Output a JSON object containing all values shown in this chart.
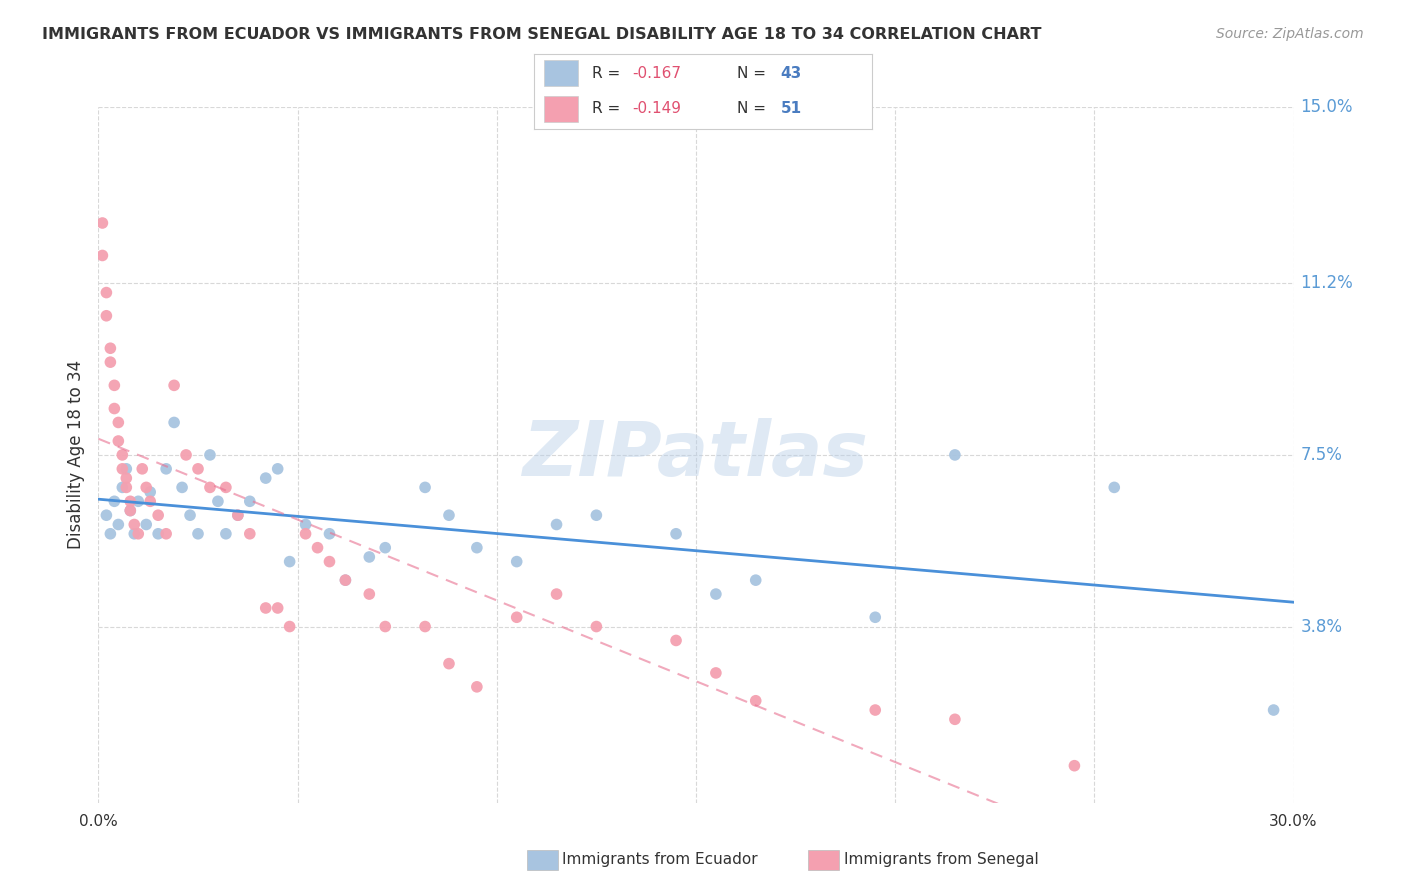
{
  "title": "IMMIGRANTS FROM ECUADOR VS IMMIGRANTS FROM SENEGAL DISABILITY AGE 18 TO 34 CORRELATION CHART",
  "source": "Source: ZipAtlas.com",
  "ylabel": "Disability Age 18 to 34",
  "xlim": [
    0.0,
    0.3
  ],
  "ylim": [
    0.0,
    0.15
  ],
  "yticks": [
    0.038,
    0.075,
    0.112,
    0.15
  ],
  "ytick_labels": [
    "3.8%",
    "7.5%",
    "11.2%",
    "15.0%"
  ],
  "xticks": [
    0.0,
    0.05,
    0.1,
    0.15,
    0.2,
    0.25,
    0.3
  ],
  "xtick_labels": [
    "0.0%",
    "",
    "",
    "",
    "",
    "",
    "30.0%"
  ],
  "ecuador_color": "#a8c4e0",
  "senegal_color": "#f4a0b0",
  "trend_ecuador_color": "#4a90d9",
  "trend_senegal_color": "#e87090",
  "ecuador_x": [
    0.002,
    0.003,
    0.004,
    0.005,
    0.006,
    0.007,
    0.008,
    0.009,
    0.01,
    0.012,
    0.013,
    0.015,
    0.017,
    0.019,
    0.021,
    0.023,
    0.025,
    0.028,
    0.03,
    0.032,
    0.035,
    0.038,
    0.042,
    0.045,
    0.048,
    0.052,
    0.058,
    0.062,
    0.068,
    0.072,
    0.082,
    0.088,
    0.095,
    0.105,
    0.115,
    0.125,
    0.145,
    0.155,
    0.165,
    0.195,
    0.215,
    0.255,
    0.295
  ],
  "ecuador_y": [
    0.062,
    0.058,
    0.065,
    0.06,
    0.068,
    0.072,
    0.063,
    0.058,
    0.065,
    0.06,
    0.067,
    0.058,
    0.072,
    0.082,
    0.068,
    0.062,
    0.058,
    0.075,
    0.065,
    0.058,
    0.062,
    0.065,
    0.07,
    0.072,
    0.052,
    0.06,
    0.058,
    0.048,
    0.053,
    0.055,
    0.068,
    0.062,
    0.055,
    0.052,
    0.06,
    0.062,
    0.058,
    0.045,
    0.048,
    0.04,
    0.075,
    0.068,
    0.02
  ],
  "senegal_x": [
    0.001,
    0.001,
    0.002,
    0.002,
    0.003,
    0.003,
    0.004,
    0.004,
    0.005,
    0.005,
    0.006,
    0.006,
    0.007,
    0.007,
    0.008,
    0.008,
    0.009,
    0.01,
    0.011,
    0.012,
    0.013,
    0.015,
    0.017,
    0.019,
    0.022,
    0.025,
    0.028,
    0.032,
    0.035,
    0.038,
    0.042,
    0.045,
    0.048,
    0.052,
    0.055,
    0.058,
    0.062,
    0.068,
    0.072,
    0.082,
    0.088,
    0.095,
    0.105,
    0.115,
    0.125,
    0.145,
    0.155,
    0.165,
    0.195,
    0.215,
    0.245
  ],
  "senegal_y": [
    0.125,
    0.118,
    0.11,
    0.105,
    0.098,
    0.095,
    0.09,
    0.085,
    0.082,
    0.078,
    0.075,
    0.072,
    0.07,
    0.068,
    0.065,
    0.063,
    0.06,
    0.058,
    0.072,
    0.068,
    0.065,
    0.062,
    0.058,
    0.09,
    0.075,
    0.072,
    0.068,
    0.068,
    0.062,
    0.058,
    0.042,
    0.042,
    0.038,
    0.058,
    0.055,
    0.052,
    0.048,
    0.045,
    0.038,
    0.038,
    0.03,
    0.025,
    0.04,
    0.045,
    0.038,
    0.035,
    0.028,
    0.022,
    0.02,
    0.018,
    0.008
  ],
  "watermark": "ZIPatlas",
  "background_color": "#ffffff",
  "grid_color": "#d8d8d8",
  "R_color": "#e05070",
  "N_color": "#4a7cc0",
  "label_color": "#333333",
  "source_color": "#999999",
  "ytick_color": "#5b9bd5"
}
